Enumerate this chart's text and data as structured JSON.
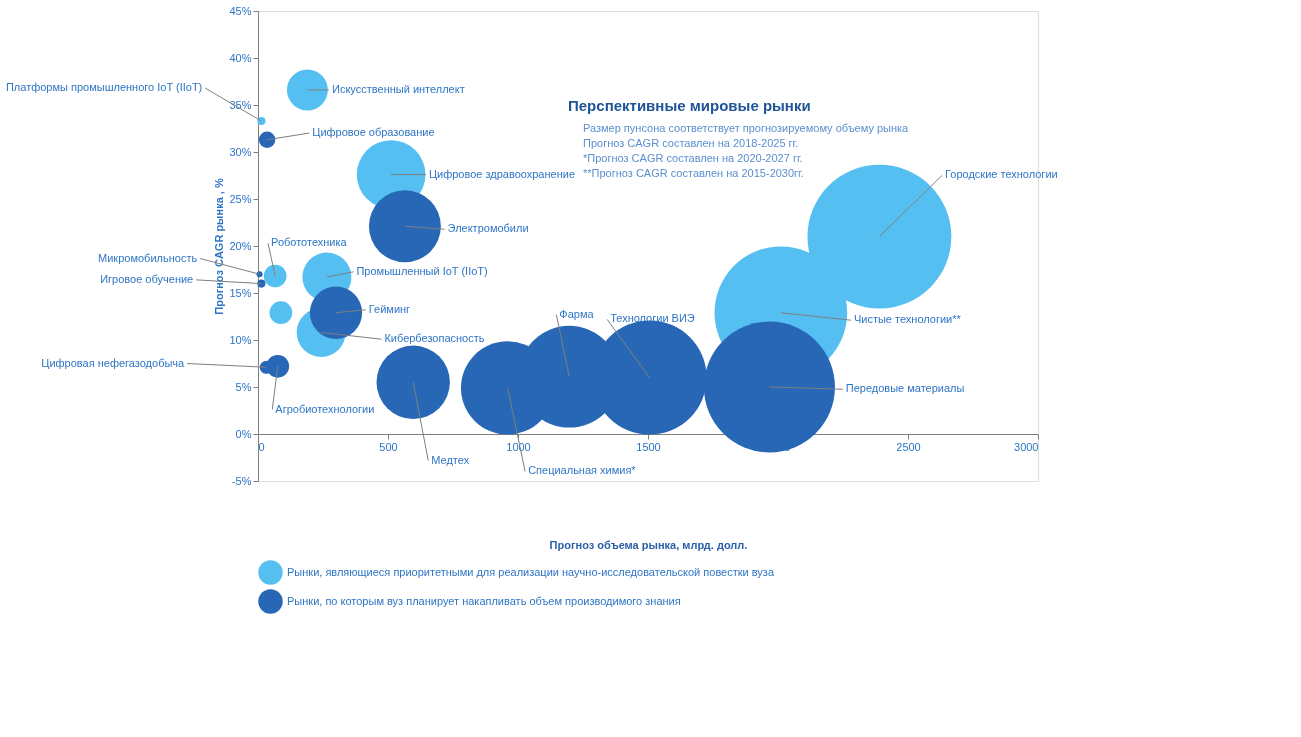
{
  "chart_data": {
    "type": "bubble",
    "title": "Перспективные мировые рынки",
    "xlabel": "Прогноз объема рынка, млрд. долл.",
    "ylabel": "Прогноз CAGR рынка , %",
    "xlim": [
      0,
      3000
    ],
    "xticks": [
      0,
      500,
      1000,
      1500,
      2000,
      2500,
      3000
    ],
    "ylim": [
      -5,
      45
    ],
    "yticks": [
      {
        "value": -5,
        "label": "-5%"
      },
      {
        "value": 0,
        "label": "0%"
      },
      {
        "value": 5,
        "label": "5%"
      },
      {
        "value": 10,
        "label": "10%"
      },
      {
        "value": 15,
        "label": "15%"
      },
      {
        "value": 20,
        "label": "20%"
      },
      {
        "value": 25,
        "label": "25%"
      },
      {
        "value": 30,
        "label": "30%"
      },
      {
        "value": 35,
        "label": "35%"
      },
      {
        "value": 40,
        "label": "40%"
      },
      {
        "value": 45,
        "label": "45%"
      }
    ],
    "grid": false,
    "legend": "bottom",
    "series": [
      {
        "name": "Рынки, являющиеся приоритетными для реализации научно-исследовательской повестки вуза",
        "color": "#56bff2",
        "x": [
          190,
          13,
          512,
          66,
          265,
          88,
          243,
          2011,
          2390
        ],
        "values": [
          36.6,
          33.3,
          27.6,
          16.8,
          16.7,
          12.9,
          10.8,
          12.9,
          21.0
        ],
        "sizes": [
          0.081,
          0.0032,
          0.228,
          0.025,
          0.116,
          0.025,
          0.116,
          0.85,
          1
        ]
      },
      {
        "name": "Рынки, по которым вуз планирует накапливать объем производимого знания",
        "color": "#2767b5",
        "x": [
          35,
          565,
          6,
          13,
          300,
          32,
          76,
          597,
          960,
          1197,
          1506,
          1967
        ],
        "values": [
          31.3,
          22.1,
          17.0,
          16.0,
          12.9,
          7.1,
          7.2,
          5.5,
          4.9,
          6.1,
          6.0,
          5.0
        ],
        "sizes": [
          0.013,
          0.25,
          0.0018,
          0.0032,
          0.132,
          0.0083,
          0.025,
          0.26,
          0.42,
          0.5,
          0.63,
          0.83
        ]
      }
    ],
    "relative": false,
    "annotations": [
      {
        "text": "Искусственный интеллект",
        "x": 190,
        "y": 36.6
      },
      {
        "text": "Платформы промышленного IoT (IIoT)",
        "x": 13,
        "y": 33.3
      },
      {
        "text": "Цифровое образование",
        "x": 35,
        "y": 31.3
      },
      {
        "text": "Цифровое здравоохранение",
        "x": 512,
        "y": 27.6
      },
      {
        "text": "Электромобили",
        "x": 565,
        "y": 22.1
      },
      {
        "text": "Робототехника",
        "x": 66,
        "y": 16.8
      },
      {
        "text": "Микромобильность",
        "x": 6,
        "y": 17.0
      },
      {
        "text": "Игровое обучение",
        "x": 13,
        "y": 16.0
      },
      {
        "text": "Промышленный IoT (IIoT)",
        "x": 265,
        "y": 16.7
      },
      {
        "text": "Кибербезопасность",
        "x": 243,
        "y": 10.8
      },
      {
        "text": "Гейминг",
        "x": 300,
        "y": 12.9
      },
      {
        "text": "Цифровая нефегазодобыча",
        "x": 32,
        "y": 7.1
      },
      {
        "text": "Агробиотехнологии",
        "x": 76,
        "y": 7.2
      },
      {
        "text": "Медтех",
        "x": 597,
        "y": 5.5
      },
      {
        "text": "Специальная химия*",
        "x": 960,
        "y": 4.9
      },
      {
        "text": "Фарма",
        "x": 1197,
        "y": 6.1
      },
      {
        "text": "Технологии ВИЭ",
        "x": 1506,
        "y": 6.0
      },
      {
        "text": "Передовые материалы",
        "x": 1967,
        "y": 5.0
      },
      {
        "text": "Чистые технологии**",
        "x": 2011,
        "y": 12.9
      },
      {
        "text": "Городские технологии",
        "x": 2390,
        "y": 21.0
      },
      "Размер пунсона соответствует прогнозируемому объему рынка",
      "Прогноз CAGR составлен на 2018-2025 гг.",
      "*Прогноз CAGR составлен на 2020-2027 гг.",
      "**Прогноз CAGR составлен на 2015-2030гг."
    ]
  }
}
